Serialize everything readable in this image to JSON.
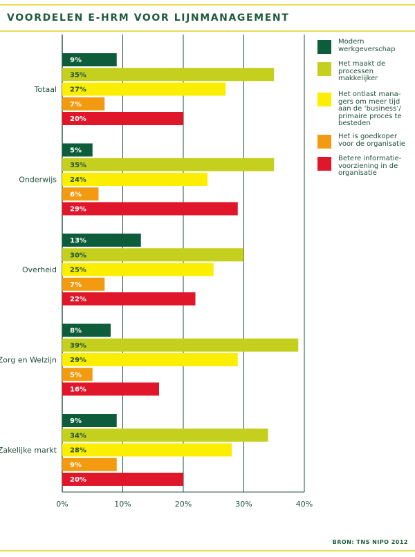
{
  "chart_data": {
    "type": "bar",
    "orientation": "horizontal",
    "title": "VOORDELEN E-HRM VOOR LIJNMANAGEMENT",
    "source": "BRON: TNS NIPO 2012",
    "categories": [
      "Totaal",
      "Onderwijs",
      "Overheid",
      "Zorg en Welzijn",
      "Zakelijke markt"
    ],
    "series": [
      {
        "name": "Modern\nwerkgeverschap",
        "color": "#0d5c3b",
        "label_color": "#ffffff",
        "values": [
          9,
          5,
          13,
          8,
          9
        ]
      },
      {
        "name": "Het maakt de\nprocessen\nmakkelijker",
        "color": "#c4cf1e",
        "label_color": "#1f4f3a",
        "values": [
          35,
          35,
          30,
          39,
          34
        ]
      },
      {
        "name": "Het ontlast mana-\ngers om meer tijd\naan de ‘business’/\nprimaire proces te\nbesteden",
        "color": "#fcee00",
        "label_color": "#1f4f3a",
        "values": [
          27,
          24,
          25,
          29,
          28
        ]
      },
      {
        "name": "Het is goedkoper\nvoor de organisatie",
        "color": "#f29b10",
        "label_color": "#ffffff",
        "values": [
          7,
          6,
          7,
          5,
          9
        ]
      },
      {
        "name": "Betere informatie-\nvoorziening in de\norganisatie",
        "color": "#e0162b",
        "label_color": "#ffffff",
        "values": [
          20,
          29,
          22,
          16,
          20
        ]
      }
    ],
    "value_labels": [
      [
        "9%",
        "35%",
        "27%",
        "7%",
        "20%"
      ],
      [
        "5%",
        "35%",
        "24%",
        "6%",
        "29%"
      ],
      [
        "13%",
        "30%",
        "25%",
        "7%",
        "22%"
      ],
      [
        "8%",
        "39%",
        "29%",
        "5%",
        "16%"
      ],
      [
        "9%",
        "34%",
        "28%",
        "9%",
        "20%"
      ]
    ],
    "x_ticks": [
      0,
      10,
      20,
      30,
      40
    ],
    "x_tick_labels": [
      "0%",
      "10%",
      "20%",
      "30%",
      "40%"
    ],
    "xlim": [
      0,
      40
    ],
    "grid": true,
    "legend_position": "right"
  }
}
